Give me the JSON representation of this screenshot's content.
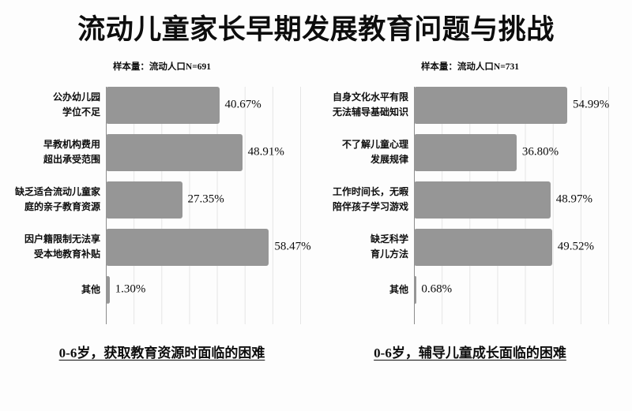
{
  "title": "流动儿童家长早期发展教育问题与挑战",
  "colors": {
    "bar": "#969696",
    "gridline": "#e5e5e5",
    "axis": "#8c8c8c",
    "text": "#0d0d0d",
    "background": "#fdfdfd"
  },
  "chart_data": [
    {
      "type": "bar",
      "orientation": "horizontal",
      "subtitle": "样本量：流动人口N=691",
      "caption": "0-6岁，获取教育资源时面临的困难",
      "xlim": [
        0,
        70
      ],
      "grid": true,
      "legend": false,
      "categories": [
        "公办幼儿园学位不足",
        "早教机构费用超出承受范围",
        "缺乏适合流动儿童家庭的亲子教育资源",
        "因户籍限制无法享受本地教育补贴",
        "其他"
      ],
      "category_lines": [
        [
          "公办幼儿园",
          "学位不足"
        ],
        [
          "早教机构费用",
          "超出承受范围"
        ],
        [
          "缺乏适合流动儿童家",
          "庭的亲子教育资源"
        ],
        [
          "因户籍限制无法享",
          "受本地教育补贴"
        ],
        [
          "其他"
        ]
      ],
      "values": [
        40.67,
        48.91,
        27.35,
        58.47,
        1.3
      ],
      "value_labels": [
        "40.67%",
        "48.91%",
        "27.35%",
        "58.47%",
        "1.30%"
      ]
    },
    {
      "type": "bar",
      "orientation": "horizontal",
      "subtitle": "样本量：流动人口N=731",
      "caption": "0-6岁，辅导儿童成长面临的困难",
      "xlim": [
        0,
        70
      ],
      "grid": true,
      "legend": false,
      "categories": [
        "自身文化水平有限无法辅导基础知识",
        "不了解儿童心理发展规律",
        "工作时间长，无暇陪伴孩子学习游戏",
        "缺乏科学育儿方法",
        "其他"
      ],
      "category_lines": [
        [
          "自身文化水平有限",
          "无法辅导基础知识"
        ],
        [
          "不了解儿童心理",
          "发展规律"
        ],
        [
          "工作时间长，无暇",
          "陪伴孩子学习游戏"
        ],
        [
          "缺乏科学",
          "育儿方法"
        ],
        [
          "其他"
        ]
      ],
      "values": [
        54.99,
        36.8,
        48.97,
        49.52,
        0.68
      ],
      "value_labels": [
        "54.99%",
        "36.80%",
        "48.97%",
        "49.52%",
        "0.68%"
      ]
    }
  ]
}
